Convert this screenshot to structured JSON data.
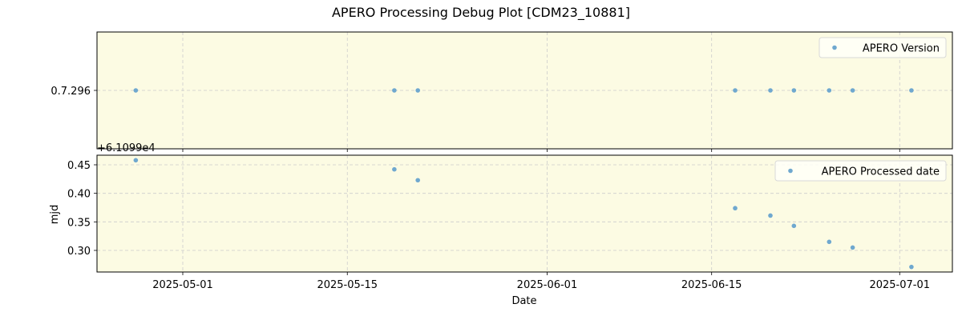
{
  "title": "APERO Processing Debug Plot [CDM23_10881]",
  "colors": {
    "panel_bg": "#fcfbe3",
    "marker": "#6fa8cf",
    "grid": "#cccccc"
  },
  "chart_data": [
    {
      "type": "scatter",
      "title": "",
      "xlabel": "",
      "ylabel": "",
      "legend": {
        "label": "APERO Version",
        "position": "upper right"
      },
      "grid": true,
      "yticks": [
        "0.7.296"
      ],
      "x": [
        "2025-04-27",
        "2025-05-19",
        "2025-05-21",
        "2025-06-17",
        "2025-06-20",
        "2025-06-22",
        "2025-06-25",
        "2025-06-27",
        "2025-07-02"
      ],
      "values": [
        "0.7.296",
        "0.7.296",
        "0.7.296",
        "0.7.296",
        "0.7.296",
        "0.7.296",
        "0.7.296",
        "0.7.296",
        "0.7.296"
      ]
    },
    {
      "type": "scatter",
      "title": "",
      "xlabel": "Date",
      "ylabel": "mjd",
      "offset_label": "+6.1099e4",
      "legend": {
        "label": "APERO Processed date",
        "position": "upper right"
      },
      "grid": true,
      "ylim": [
        0.263,
        0.467
      ],
      "yticks": [
        "0.30",
        "0.35",
        "0.40",
        "0.45"
      ],
      "xticks": [
        "2025-05-01",
        "2025-05-15",
        "2025-06-01",
        "2025-06-15",
        "2025-07-01"
      ],
      "x": [
        "2025-04-27",
        "2025-05-19",
        "2025-05-21",
        "2025-06-17",
        "2025-06-20",
        "2025-06-22",
        "2025-06-25",
        "2025-06-27",
        "2025-07-02"
      ],
      "values": [
        0.458,
        0.442,
        0.423,
        0.374,
        0.361,
        0.343,
        0.315,
        0.305,
        0.271
      ]
    }
  ]
}
